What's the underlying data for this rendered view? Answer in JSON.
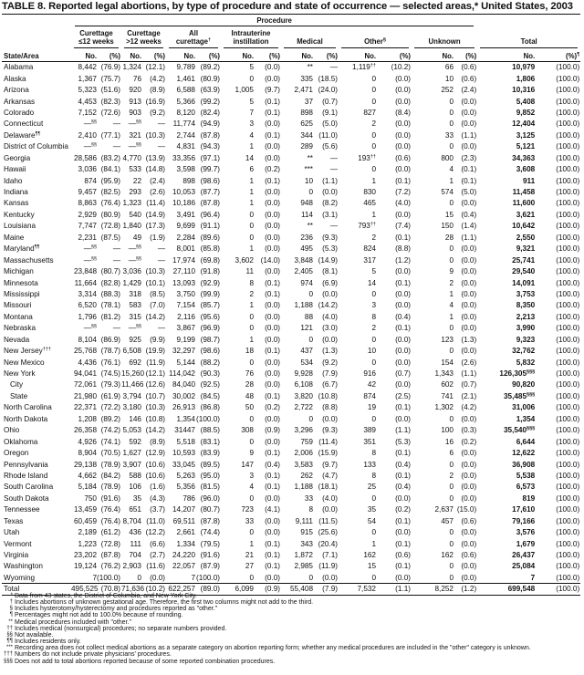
{
  "title": "TABLE 8. Reported legal abortions, by type of procedure and state of occurrence — selected areas,* United States, 2003",
  "header": {
    "procedure": "Procedure",
    "groups": [
      {
        "line1": "Curettage",
        "line2": "≤12 weeks",
        "sup": ""
      },
      {
        "line1": "Curettage",
        "line2": ">12 weeks",
        "sup": ""
      },
      {
        "line1": "All",
        "line2": "curettage",
        "sup": "†"
      },
      {
        "line1": "Intrauterine",
        "line2": "instillation",
        "sup": ""
      },
      {
        "line1": "",
        "line2": "Medical",
        "sup": ""
      },
      {
        "line1": "",
        "line2": "Other",
        "sup": "§"
      },
      {
        "line1": "",
        "line2": "Unknown",
        "sup": ""
      },
      {
        "line1": "",
        "line2": "Total",
        "sup": ""
      }
    ],
    "state_area": "State/Area",
    "no": "No.",
    "pct": "(%)",
    "total_pct_sup": "¶"
  },
  "rows": [
    {
      "label": "Alabama",
      "cells": [
        "8,442",
        "(76.9)",
        "1,324",
        "(12.1)",
        "9,789",
        "(89.2)",
        "5",
        "(0.0)",
        "**",
        "—",
        {
          "v": "1,119",
          "sup": "††"
        },
        "(10.2)",
        "66",
        "(0.6)",
        "10,979",
        "(100.0)"
      ]
    },
    {
      "label": "Alaska",
      "cells": [
        "1,367",
        "(75.7)",
        "76",
        "(4.2)",
        "1,461",
        "(80.9)",
        "0",
        "(0.0)",
        "335",
        "(18.5)",
        "0",
        "(0.0)",
        "10",
        "(0.6)",
        "1,806",
        "(100.0)"
      ]
    },
    {
      "label": "Arizona",
      "cells": [
        "5,323",
        "(51.6)",
        "920",
        "(8.9)",
        "6,588",
        "(63.9)",
        "1,005",
        "(9.7)",
        "2,471",
        "(24.0)",
        "0",
        "(0.0)",
        "252",
        "(2.4)",
        "10,316",
        "(100.0)"
      ]
    },
    {
      "label": "Arkansas",
      "cells": [
        "4,453",
        "(82.3)",
        "913",
        "(16.9)",
        "5,366",
        "(99.2)",
        "5",
        "(0.1)",
        "37",
        "(0.7)",
        "0",
        "(0.0)",
        "0",
        "(0.0)",
        "5,408",
        "(100.0)"
      ]
    },
    {
      "label": "Colorado",
      "cells": [
        "7,152",
        "(72.6)",
        "903",
        "(9.2)",
        "8,120",
        "(82.4)",
        "7",
        "(0.1)",
        "898",
        "(9.1)",
        "827",
        "(8.4)",
        "0",
        "(0.0)",
        "9,852",
        "(100.0)"
      ]
    },
    {
      "label": "Connecticut",
      "cells": [
        {
          "v": "—",
          "sup": "§§"
        },
        "—",
        {
          "v": "—",
          "sup": "§§"
        },
        "—",
        "11,774",
        "(94.9)",
        "3",
        "(0.0)",
        "625",
        "(5.0)",
        "2",
        "(0.0)",
        "0",
        "(0.0)",
        "12,404",
        "(100.0)"
      ]
    },
    {
      "label": "Delaware",
      "label_sup": "¶¶",
      "cells": [
        "2,410",
        "(77.1)",
        "321",
        "(10.3)",
        "2,744",
        "(87.8)",
        "4",
        "(0.1)",
        "344",
        "(11.0)",
        "0",
        "(0.0)",
        "33",
        "(1.1)",
        "3,125",
        "(100.0)"
      ]
    },
    {
      "label": "District of Columbia",
      "cells": [
        {
          "v": "—",
          "sup": "§§"
        },
        "—",
        {
          "v": "—",
          "sup": "§§"
        },
        "—",
        "4,831",
        "(94.3)",
        "1",
        "(0.0)",
        "289",
        "(5.6)",
        "0",
        "(0.0)",
        "0",
        "(0.0)",
        "5,121",
        "(100.0)"
      ]
    },
    {
      "label": "Georgia",
      "cells": [
        "28,586",
        "(83.2)",
        "4,770",
        "(13.9)",
        "33,356",
        "(97.1)",
        "14",
        "(0.0)",
        "**",
        "—",
        {
          "v": "193",
          "sup": "††"
        },
        "(0.6)",
        "800",
        "(2.3)",
        "34,363",
        "(100.0)"
      ]
    },
    {
      "label": "Hawaii",
      "cells": [
        "3,036",
        "(84.1)",
        "533",
        "(14.8)",
        "3,598",
        "(99.7)",
        "6",
        "(0.2)",
        "***",
        "—",
        "0",
        "(0.0)",
        "4",
        "(0.1)",
        "3,608",
        "(100.0)"
      ]
    },
    {
      "label": "Idaho",
      "cells": [
        "874",
        "(95.9)",
        "22",
        "(2.4)",
        "898",
        "(98.6)",
        "1",
        "(0.1)",
        "10",
        "(1.1)",
        "1",
        "(0.1)",
        "1",
        "(0.1)",
        "911",
        "(100.0)"
      ]
    },
    {
      "label": "Indiana",
      "cells": [
        "9,457",
        "(82.5)",
        "293",
        "(2.6)",
        "10,053",
        "(87.7)",
        "1",
        "(0.0)",
        "0",
        "(0.0)",
        "830",
        "(7.2)",
        "574",
        "(5.0)",
        "11,458",
        "(100.0)"
      ]
    },
    {
      "label": "Kansas",
      "cells": [
        "8,863",
        "(76.4)",
        "1,323",
        "(11.4)",
        "10,186",
        "(87.8)",
        "1",
        "(0.0)",
        "948",
        "(8.2)",
        "465",
        "(4.0)",
        "0",
        "(0.0)",
        "11,600",
        "(100.0)"
      ]
    },
    {
      "label": "Kentucky",
      "cells": [
        "2,929",
        "(80.9)",
        "540",
        "(14.9)",
        "3,491",
        "(96.4)",
        "0",
        "(0.0)",
        "114",
        "(3.1)",
        "1",
        "(0.0)",
        "15",
        "(0.4)",
        "3,621",
        "(100.0)"
      ]
    },
    {
      "label": "Louisiana",
      "cells": [
        "7,747",
        "(72.8)",
        "1,840",
        "(17.3)",
        "9,699",
        "(91.1)",
        "0",
        "(0.0)",
        "**",
        "—",
        {
          "v": "793",
          "sup": "††"
        },
        "(7.4)",
        "150",
        "(1.4)",
        "10,642",
        "(100.0)"
      ]
    },
    {
      "label": "Maine",
      "cells": [
        "2,231",
        "(87.5)",
        "49",
        "(1.9)",
        "2,284",
        "(89.6)",
        "0",
        "(0.0)",
        "236",
        "(9.3)",
        "2",
        "(0.1)",
        "28",
        "(1.1)",
        "2,550",
        "(100.0)"
      ]
    },
    {
      "label": "Maryland",
      "label_sup": "¶¶",
      "cells": [
        {
          "v": "—",
          "sup": "§§"
        },
        "—",
        {
          "v": "—",
          "sup": "§§"
        },
        "—",
        "8,001",
        "(85.8)",
        "1",
        "(0.0)",
        "495",
        "(5.3)",
        "824",
        "(8.8)",
        "0",
        "(0.0)",
        "9,321",
        "(100.0)"
      ]
    },
    {
      "label": "Massachusetts",
      "cells": [
        {
          "v": "—",
          "sup": "§§"
        },
        "—",
        {
          "v": "—",
          "sup": "§§"
        },
        "—",
        "17,974",
        "(69.8)",
        "3,602",
        "(14.0)",
        "3,848",
        "(14.9)",
        "317",
        "(1.2)",
        "0",
        "(0.0)",
        "25,741",
        "(100.0)"
      ]
    },
    {
      "label": "Michigan",
      "cells": [
        "23,848",
        "(80.7)",
        "3,036",
        "(10.3)",
        "27,110",
        "(91.8)",
        "11",
        "(0.0)",
        "2,405",
        "(8.1)",
        "5",
        "(0.0)",
        "9",
        "(0.0)",
        "29,540",
        "(100.0)"
      ]
    },
    {
      "label": "Minnesota",
      "cells": [
        "11,664",
        "(82.8)",
        "1,429",
        "(10.1)",
        "13,093",
        "(92.9)",
        "8",
        "(0.1)",
        "974",
        "(6.9)",
        "14",
        "(0.1)",
        "2",
        "(0.0)",
        "14,091",
        "(100.0)"
      ]
    },
    {
      "label": "Mississippi",
      "cells": [
        "3,314",
        "(88.3)",
        "318",
        "(8.5)",
        "3,750",
        "(99.9)",
        "2",
        "(0.1)",
        "0",
        "(0.0)",
        "0",
        "(0.0)",
        "1",
        "(0.0)",
        "3,753",
        "(100.0)"
      ]
    },
    {
      "label": "Missouri",
      "cells": [
        "6,520",
        "(78.1)",
        "583",
        "(7.0)",
        "7,154",
        "(85.7)",
        "1",
        "(0.0)",
        "1,188",
        "(14.2)",
        "3",
        "(0.0)",
        "4",
        "(0.0)",
        "8,350",
        "(100.0)"
      ]
    },
    {
      "label": "Montana",
      "cells": [
        "1,796",
        "(81.2)",
        "315",
        "(14.2)",
        "2,116",
        "(95.6)",
        "0",
        "(0.0)",
        "88",
        "(4.0)",
        "8",
        "(0.4)",
        "1",
        "(0.0)",
        "2,213",
        "(100.0)"
      ]
    },
    {
      "label": "Nebraska",
      "cells": [
        {
          "v": "—",
          "sup": "§§"
        },
        "—",
        {
          "v": "—",
          "sup": "§§"
        },
        "—",
        "3,867",
        "(96.9)",
        "0",
        "(0.0)",
        "121",
        "(3.0)",
        "2",
        "(0.1)",
        "0",
        "(0.0)",
        "3,990",
        "(100.0)"
      ]
    },
    {
      "label": "Nevada",
      "cells": [
        "8,104",
        "(86.9)",
        "925",
        "(9.9)",
        "9,199",
        "(98.7)",
        "1",
        "(0.0)",
        "0",
        "(0.0)",
        "0",
        "(0.0)",
        "123",
        "(1.3)",
        "9,323",
        "(100.0)"
      ]
    },
    {
      "label": "New Jersey",
      "label_sup": "†††",
      "cells": [
        "25,768",
        "(78.7)",
        "6,508",
        "(19.9)",
        "32,297",
        "(98.6)",
        "18",
        "(0.1)",
        "437",
        "(1.3)",
        "10",
        "(0.0)",
        "0",
        "(0.0)",
        "32,762",
        "(100.0)"
      ]
    },
    {
      "label": "New Mexico",
      "cells": [
        "4,436",
        "(76.1)",
        "692",
        "(11.9)",
        "5,144",
        "(88.2)",
        "0",
        "(0.0)",
        "534",
        "(9.2)",
        "0",
        "(0.0)",
        "154",
        "(2.6)",
        "5,832",
        "(100.0)"
      ]
    },
    {
      "label": "New York",
      "cells": [
        "94,041",
        "(74.5)",
        "15,260",
        "(12.1)",
        "114,042",
        "(90.3)",
        "76",
        "(0.0)",
        "9,928",
        "(7.9)",
        "916",
        "(0.7)",
        "1,343",
        "(1.1)",
        {
          "v": "126,305",
          "sup": "§§§"
        },
        "(100.0)"
      ]
    },
    {
      "label": "City",
      "sub": true,
      "cells": [
        "72,061",
        "(79.3)",
        "11,466",
        "(12.6)",
        "84,040",
        "(92.5)",
        "28",
        "(0.0)",
        "6,108",
        "(6.7)",
        "42",
        "(0.0)",
        "602",
        "(0.7)",
        "90,820",
        "(100.0)"
      ]
    },
    {
      "label": "State",
      "sub": true,
      "cells": [
        "21,980",
        "(61.9)",
        "3,794",
        "(10.7)",
        "30,002",
        "(84.5)",
        "48",
        "(0.1)",
        "3,820",
        "(10.8)",
        "874",
        "(2.5)",
        "741",
        "(2.1)",
        {
          "v": "35,485",
          "sup": "§§§"
        },
        "(100.0)"
      ]
    },
    {
      "label": "North Carolina",
      "cells": [
        "22,371",
        "(72.2)",
        "3,180",
        "(10.3)",
        "26,913",
        "(86.8)",
        "50",
        "(0.2)",
        "2,722",
        "(8.8)",
        "19",
        "(0.1)",
        "1,302",
        "(4.2)",
        "31,006",
        "(100.0)"
      ]
    },
    {
      "label": "North Dakota",
      "cells": [
        "1,208",
        "(89.2)",
        "146",
        "(10.8)",
        "1,354",
        "(100.0)",
        "0",
        "(0.0)",
        "0",
        "(0.0)",
        "0",
        "(0.0)",
        "0",
        "(0.0)",
        "1,354",
        "(100.0)"
      ]
    },
    {
      "label": "Ohio",
      "cells": [
        "26,358",
        "(74.2)",
        "5,053",
        "(14.2)",
        "31447",
        "(88.5)",
        "308",
        "(0.9)",
        "3,296",
        "(9.3)",
        "389",
        "(1.1)",
        "100",
        "(0.3)",
        {
          "v": "35,540",
          "sup": "§§§"
        },
        "(100.0)"
      ]
    },
    {
      "label": "Oklahoma",
      "cells": [
        "4,926",
        "(74.1)",
        "592",
        "(8.9)",
        "5,518",
        "(83.1)",
        "0",
        "(0.0)",
        "759",
        "(11.4)",
        "351",
        "(5.3)",
        "16",
        "(0.2)",
        "6,644",
        "(100.0)"
      ]
    },
    {
      "label": "Oregon",
      "cells": [
        "8,904",
        "(70.5)",
        "1,627",
        "(12.9)",
        "10,593",
        "(83.9)",
        "9",
        "(0.1)",
        "2,006",
        "(15.9)",
        "8",
        "(0.1)",
        "6",
        "(0.0)",
        "12,622",
        "(100.0)"
      ]
    },
    {
      "label": "Pennsylvania",
      "cells": [
        "29,138",
        "(78.9)",
        "3,907",
        "(10.6)",
        "33,045",
        "(89.5)",
        "147",
        "(0.4)",
        "3,583",
        "(9.7)",
        "133",
        "(0.4)",
        "0",
        "(0.0)",
        "36,908",
        "(100.0)"
      ]
    },
    {
      "label": "Rhode Island",
      "cells": [
        "4,662",
        "(84.2)",
        "588",
        "(10.6)",
        "5,263",
        "(95.0)",
        "3",
        "(0.1)",
        "262",
        "(4.7)",
        "8",
        "(0.1)",
        "2",
        "(0.0)",
        "5,538",
        "(100.0)"
      ]
    },
    {
      "label": "South Carolina",
      "cells": [
        "5,184",
        "(78.9)",
        "106",
        "(1.6)",
        "5,356",
        "(81.5)",
        "4",
        "(0.1)",
        "1,188",
        "(18.1)",
        "25",
        "(0.4)",
        "0",
        "(0.0)",
        "6,573",
        "(100.0)"
      ]
    },
    {
      "label": "South Dakota",
      "cells": [
        "750",
        "(91.6)",
        "35",
        "(4.3)",
        "786",
        "(96.0)",
        "0",
        "(0.0)",
        "33",
        "(4.0)",
        "0",
        "(0.0)",
        "0",
        "(0.0)",
        "819",
        "(100.0)"
      ]
    },
    {
      "label": "Tennessee",
      "cells": [
        "13,459",
        "(76.4)",
        "651",
        "(3.7)",
        "14,207",
        "(80.7)",
        "723",
        "(4.1)",
        "8",
        "(0.0)",
        "35",
        "(0.2)",
        "2,637",
        "(15.0)",
        "17,610",
        "(100.0)"
      ]
    },
    {
      "label": "Texas",
      "cells": [
        "60,459",
        "(76.4)",
        "8,704",
        "(11.0)",
        "69,511",
        "(87.8)",
        "33",
        "(0.0)",
        "9,111",
        "(11.5)",
        "54",
        "(0.1)",
        "457",
        "(0.6)",
        "79,166",
        "(100.0)"
      ]
    },
    {
      "label": "Utah",
      "cells": [
        "2,189",
        "(61.2)",
        "436",
        "(12.2)",
        "2,661",
        "(74.4)",
        "0",
        "(0.0)",
        "915",
        "(25.6)",
        "0",
        "(0.0)",
        "0",
        "(0.0)",
        "3,576",
        "(100.0)"
      ]
    },
    {
      "label": "Vermont",
      "cells": [
        "1,223",
        "(72.8)",
        "111",
        "(6.6)",
        "1,334",
        "(79.5)",
        "1",
        "(0.1)",
        "343",
        "(20.4)",
        "1",
        "(0.1)",
        "0",
        "(0.0)",
        "1,679",
        "(100.0)"
      ]
    },
    {
      "label": "Virginia",
      "cells": [
        "23,202",
        "(87.8)",
        "704",
        "(2.7)",
        "24,220",
        "(91.6)",
        "21",
        "(0.1)",
        "1,872",
        "(7.1)",
        "162",
        "(0.6)",
        "162",
        "(0.6)",
        "26,437",
        "(100.0)"
      ]
    },
    {
      "label": "Washington",
      "cells": [
        "19,124",
        "(76.2)",
        "2,903",
        "(11.6)",
        "22,057",
        "(87.9)",
        "27",
        "(0.1)",
        "2,985",
        "(11.9)",
        "15",
        "(0.1)",
        "0",
        "(0.0)",
        "25,084",
        "(100.0)"
      ]
    },
    {
      "label": "Wyoming",
      "cells": [
        "7",
        "(100.0)",
        "0",
        "(0.0)",
        "7",
        "(100.0)",
        "0",
        "(0.0)",
        "0",
        "(0.0)",
        "0",
        "(0.0)",
        "0",
        "(0.0)",
        "7",
        "(100.0)"
      ]
    }
  ],
  "total": {
    "label": "Total",
    "cells": [
      "495,525",
      "(70.8)",
      "71,636",
      "(10.2)",
      "622,257",
      "(89.0)",
      "6,099",
      "(0.9)",
      "55,408",
      "(7.9)",
      "7,532",
      "(1.1)",
      "8,252",
      "(1.2)",
      "699,548",
      "(100.0)"
    ]
  },
  "footnotes": [
    {
      "mark": "*",
      "text": "Data from 43 states, the District of Columbia, and New York City."
    },
    {
      "mark": "†",
      "text": "Includes abortions of unknown gestational age. Therefore, the first two columns might not add to the third."
    },
    {
      "mark": "§",
      "text": "Includes hysterotomy/hysterectomy and procedures reported as \"other.\""
    },
    {
      "mark": "¶",
      "text": "Percentages might not add to 100.0% because of rounding."
    },
    {
      "mark": "**",
      "text": "Medical procedures included with \"other.\""
    },
    {
      "mark": "††",
      "text": "Includes medical (nonsurgical) procedures; no separate numbers provided."
    },
    {
      "mark": "§§",
      "text": "Not available."
    },
    {
      "mark": "¶¶",
      "text": "Includes residents only."
    },
    {
      "mark": "***",
      "text": "Recording area does not collect medical abortions as a separate category on abortion reporting form; whether any medical procedures are included in the \"other\" category is unknown."
    },
    {
      "mark": "†††",
      "text": "Numbers do not include private physicians' procedures."
    },
    {
      "mark": "§§§",
      "text": "Does not add to total abortions reported because of some reported combination procedures."
    }
  ]
}
